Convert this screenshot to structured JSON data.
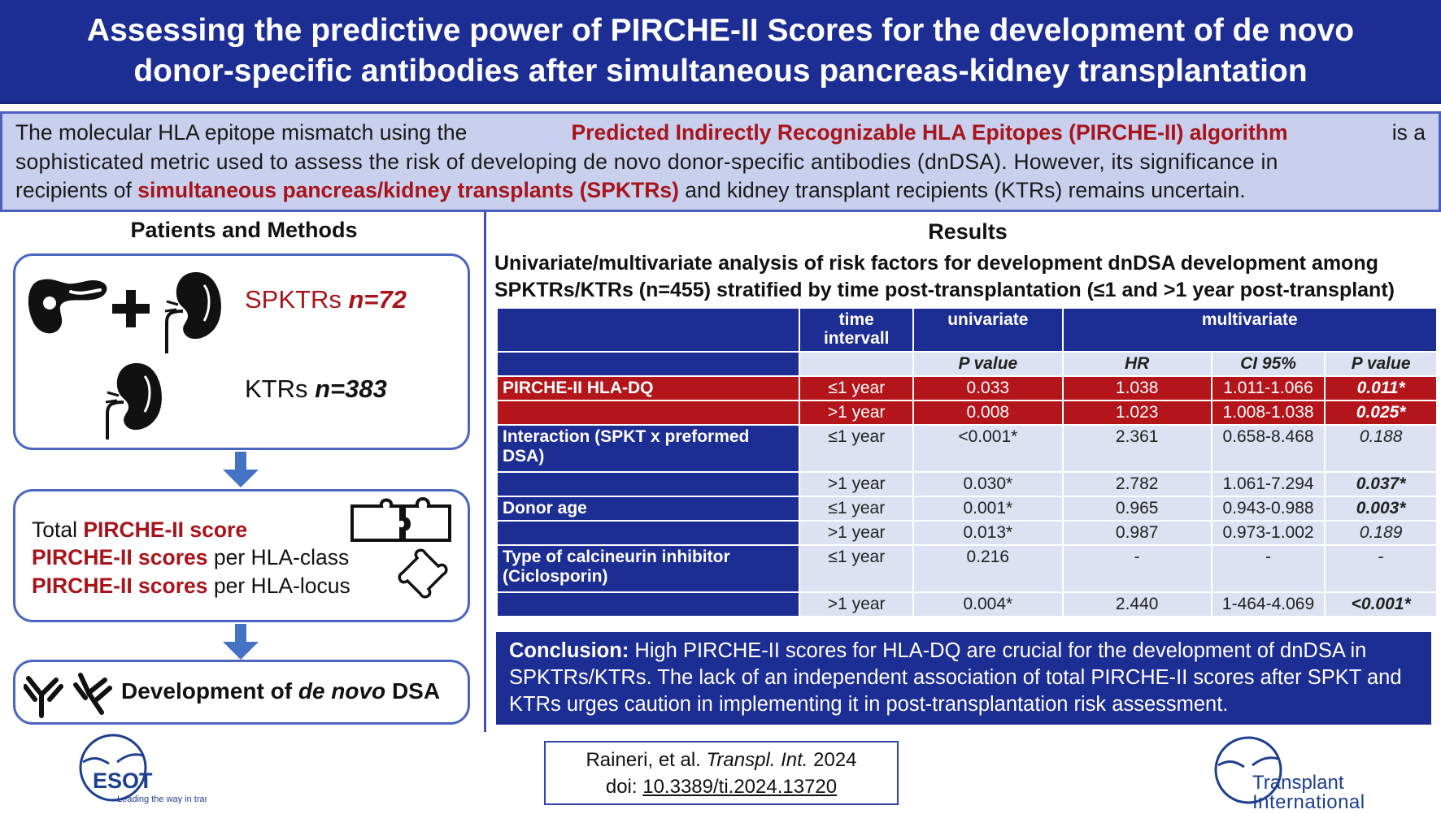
{
  "title": {
    "line1": "Assessing the predictive power of PIRCHE-II Scores for the development of de novo",
    "line2": "donor-specific antibodies after simultaneous pancreas-kidney transplantation"
  },
  "intro": {
    "l1_a": "The molecular HLA epitope mismatch using the",
    "l1_b": "Predicted Indirectly Recognizable HLA Epitopes (PIRCHE-II) algorithm",
    "l1_c": "is a",
    "l2": "sophisticated metric used to assess the risk of developing de novo donor-specific antibodies (dnDSA). However, its significance in",
    "l3_a": "recipients of",
    "l3_b": "simultaneous pancreas/kidney transplants (SPKTRs)",
    "l3_c": "and kidney transplant recipients (KTRs) remains uncertain."
  },
  "methods": {
    "heading": "Patients and Methods",
    "spktr_label": "SPKTRs",
    "spktr_n": "n=72",
    "ktr_label": "KTRs",
    "ktr_n": "n=383",
    "score1_red": "PIRCHE-II score",
    "score1_prefix": "Total",
    "score2_red": "PIRCHE-II scores",
    "score2_suffix": "per HLA-class",
    "score3_red": "PIRCHE-II scores",
    "score3_suffix": "per HLA-locus",
    "dsa_a": "Development of",
    "dsa_b": "de novo",
    "dsa_c": "DSA"
  },
  "results": {
    "heading": "Results",
    "table_title_1": "Univariate/multivariate analysis of risk factors for development dnDSA development among",
    "table_title_2": "SPKTRs/KTRs (n=455) stratified by time post-transplantation (≤1 and >1 year post-transplant)",
    "headers": {
      "time": "time intervall",
      "univariate": "univariate",
      "multivariate": "multivariate",
      "pvalue": "P value",
      "hr": "HR",
      "ci": "CI 95%",
      "pvalue2": "P value"
    },
    "rows": [
      {
        "label": "PIRCHE-II HLA-DQ",
        "time": "≤1 year",
        "p_uni": "0.033",
        "hr": "1.038",
        "ci": "1.011-1.066",
        "p_multi": "0.011*"
      },
      {
        "label": "",
        "time": ">1 year",
        "p_uni": "0.008",
        "hr": "1.023",
        "ci": "1.008-1.038",
        "p_multi": "0.025*"
      },
      {
        "label": "Interaction (SPKT x preformed DSA)",
        "time": "≤1 year",
        "p_uni": "<0.001*",
        "hr": "2.361",
        "ci": "0.658-8.468",
        "p_multi": "0.188"
      },
      {
        "label": "",
        "time": ">1 year",
        "p_uni": "0.030*",
        "hr": "2.782",
        "ci": "1.061-7.294",
        "p_multi": "0.037*"
      },
      {
        "label": "Donor age",
        "time": "≤1 year",
        "p_uni": "0.001*",
        "hr": "0.965",
        "ci": "0.943-0.988",
        "p_multi": "0.003*"
      },
      {
        "label": "",
        "time": ">1 year",
        "p_uni": "0.013*",
        "hr": "0.987",
        "ci": "0.973-1.002",
        "p_multi": "0.189"
      },
      {
        "label": "Type of calcineurin inhibitor (Ciclosporin)",
        "time": "≤1 year",
        "p_uni": "0.216",
        "hr": "-",
        "ci": "-",
        "p_multi": "-"
      },
      {
        "label": "",
        "time": ">1 year",
        "p_uni": "0.004*",
        "hr": "2.440",
        "ci": "1-464-4.069",
        "p_multi": "<0.001*"
      }
    ]
  },
  "conclusion": {
    "label": "Conclusion:",
    "text": "High PIRCHE-II scores for HLA-DQ are crucial for the development of dnDSA in SPKTRs/KTRs. The lack of an independent association of total PIRCHE-II scores after SPKT and KTRs urges caution in implementing it in post-transplantation risk assessment."
  },
  "citation": {
    "authors": "Raineri, et al.",
    "journal": "Transpl. Int.",
    "year": "2024",
    "doi_label": "doi:",
    "doi": "10.3389/ti.2024.13720"
  },
  "logos": {
    "esot": "ESOT",
    "esot_tag": "Leading the way in transplantation",
    "ti_1": "Transplant",
    "ti_2": "International"
  },
  "colors": {
    "navy": "#1c2d93",
    "red": "#b3151b",
    "light": "#dde1f1",
    "intro_bg": "#c9d0ee"
  }
}
